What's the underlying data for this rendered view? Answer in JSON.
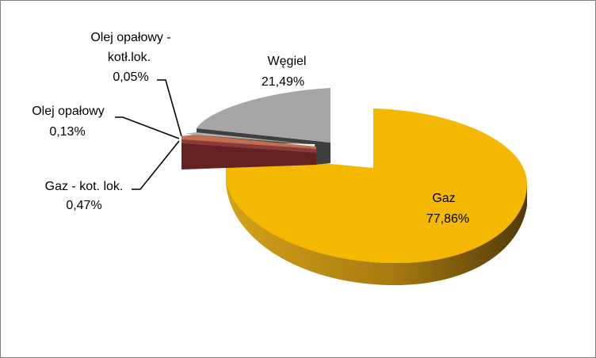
{
  "chart_data": {
    "type": "pie",
    "variant": "3d-exploded",
    "title": "",
    "legend": "none",
    "slices": [
      {
        "label": "Gaz",
        "value": 77.86,
        "value_text": "77,86%",
        "color": "#F5B800"
      },
      {
        "label": "Węgiel",
        "value": 21.49,
        "value_text": "21,49%",
        "color": "#A6A6A6"
      },
      {
        "label": "Olej opałowy - kotł.lok.",
        "value": 0.05,
        "value_text": "0,05%",
        "color": "#B0B0B0"
      },
      {
        "label": "Olej opałowy",
        "value": 0.13,
        "value_text": "0,13%",
        "color": "#C07050"
      },
      {
        "label": "Gaz - kot. lok.",
        "value": 0.47,
        "value_text": "0,47%",
        "color": "#7A2A2A"
      }
    ]
  }
}
